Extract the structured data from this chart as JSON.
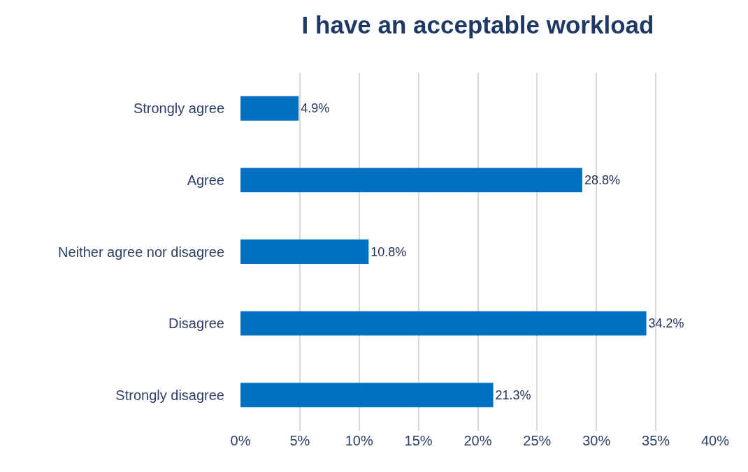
{
  "chart_data": {
    "type": "bar",
    "orientation": "horizontal",
    "title": "I have an acceptable workload",
    "categories": [
      "Strongly agree",
      "Agree",
      "Neither agree nor disagree",
      "Disagree",
      "Strongly disagree"
    ],
    "values": [
      4.9,
      28.8,
      10.8,
      34.2,
      21.3
    ],
    "value_labels": [
      "4.9%",
      "28.8%",
      "10.8%",
      "34.2%",
      "21.3%"
    ],
    "color": "#0070c0",
    "xlim": [
      0,
      40
    ],
    "xticks": [
      {
        "value": 0,
        "label": "0%"
      },
      {
        "value": 5,
        "label": "5%"
      },
      {
        "value": 10,
        "label": "10%"
      },
      {
        "value": 15,
        "label": "15%"
      },
      {
        "value": 20,
        "label": "20%"
      },
      {
        "value": 25,
        "label": "25%"
      },
      {
        "value": 30,
        "label": "30%"
      },
      {
        "value": 35,
        "label": "35%"
      },
      {
        "value": 40,
        "label": "40%"
      }
    ],
    "grid": "x",
    "legend": false
  }
}
